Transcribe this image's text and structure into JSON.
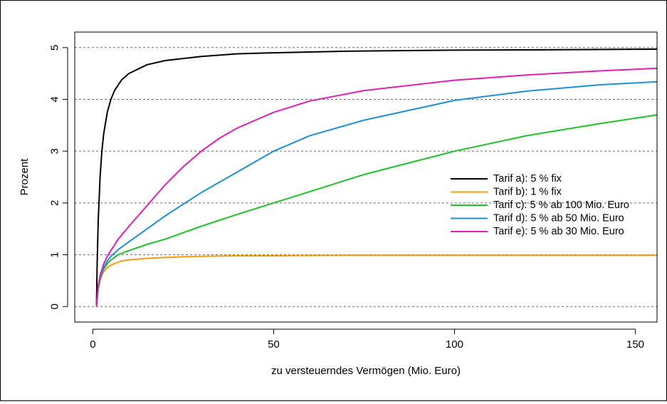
{
  "chart_data": {
    "type": "line",
    "title": "",
    "xlabel": "zu versteuerndes Vermögen (Mio. Euro)",
    "ylabel": "Prozent",
    "xlim": [
      -5,
      156
    ],
    "ylim": [
      -0.3,
      5.3
    ],
    "x_ticks": [
      0,
      50,
      100,
      150
    ],
    "x_tick_labels": [
      "0",
      "50",
      "100",
      "150"
    ],
    "y_ticks": [
      0,
      1,
      2,
      3,
      4,
      5
    ],
    "y_tick_labels": [
      "0",
      "1",
      "2",
      "3",
      "4",
      "5"
    ],
    "horizontal_grid": "dotted",
    "legend_position": "right",
    "series": [
      {
        "name": "Tarif a): 5 % fix",
        "color": "#000000",
        "x": [
          1,
          1.2,
          1.5,
          2,
          2.5,
          3,
          4,
          5,
          6,
          8,
          10,
          15,
          20,
          30,
          40,
          50,
          70,
          100,
          130,
          156
        ],
        "y": [
          0,
          0.83,
          1.67,
          2.5,
          3.0,
          3.33,
          3.75,
          4.0,
          4.17,
          4.38,
          4.5,
          4.67,
          4.75,
          4.83,
          4.88,
          4.9,
          4.93,
          4.95,
          4.96,
          4.97
        ]
      },
      {
        "name": "Tarif b): 1 % fix",
        "color": "#f39c12",
        "x": [
          1,
          1.2,
          1.5,
          2,
          2.5,
          3,
          4,
          5,
          6,
          8,
          10,
          15,
          20,
          30,
          40,
          50,
          70,
          100,
          130,
          156
        ],
        "y": [
          0,
          0.17,
          0.33,
          0.5,
          0.6,
          0.67,
          0.75,
          0.8,
          0.83,
          0.88,
          0.9,
          0.93,
          0.95,
          0.97,
          0.98,
          0.98,
          0.99,
          0.99,
          0.99,
          0.99
        ]
      },
      {
        "name": "Tarif c): 5 % ab 100 Mio. Euro",
        "color": "#22c02a",
        "x": [
          1,
          1.5,
          2,
          3,
          4,
          5,
          7,
          10,
          15,
          20,
          30,
          40,
          50,
          60,
          75,
          100,
          120,
          140,
          156
        ],
        "y": [
          0,
          0.36,
          0.54,
          0.72,
          0.83,
          0.9,
          1.0,
          1.08,
          1.2,
          1.3,
          1.55,
          1.78,
          2.0,
          2.22,
          2.55,
          3.0,
          3.3,
          3.53,
          3.7
        ]
      },
      {
        "name": "Tarif d): 5 % ab 50 Mio. Euro",
        "color": "#1e8fd8",
        "x": [
          1,
          1.5,
          2,
          3,
          4,
          5,
          7,
          10,
          15,
          20,
          30,
          40,
          50,
          60,
          75,
          100,
          120,
          140,
          156
        ],
        "y": [
          0,
          0.37,
          0.56,
          0.75,
          0.88,
          0.97,
          1.1,
          1.25,
          1.5,
          1.75,
          2.2,
          2.6,
          3.0,
          3.3,
          3.6,
          3.98,
          4.16,
          4.28,
          4.34
        ]
      },
      {
        "name": "Tarif e): 5 % ab 30 Mio. Euro",
        "color": "#e020b0",
        "x": [
          1,
          1.5,
          2,
          3,
          4,
          5,
          7,
          10,
          15,
          20,
          25,
          30,
          35,
          40,
          50,
          60,
          75,
          100,
          120,
          140,
          156
        ],
        "y": [
          0,
          0.4,
          0.6,
          0.82,
          0.97,
          1.08,
          1.3,
          1.55,
          1.95,
          2.35,
          2.7,
          3.0,
          3.25,
          3.45,
          3.75,
          3.97,
          4.17,
          4.37,
          4.47,
          4.55,
          4.6
        ]
      }
    ]
  }
}
